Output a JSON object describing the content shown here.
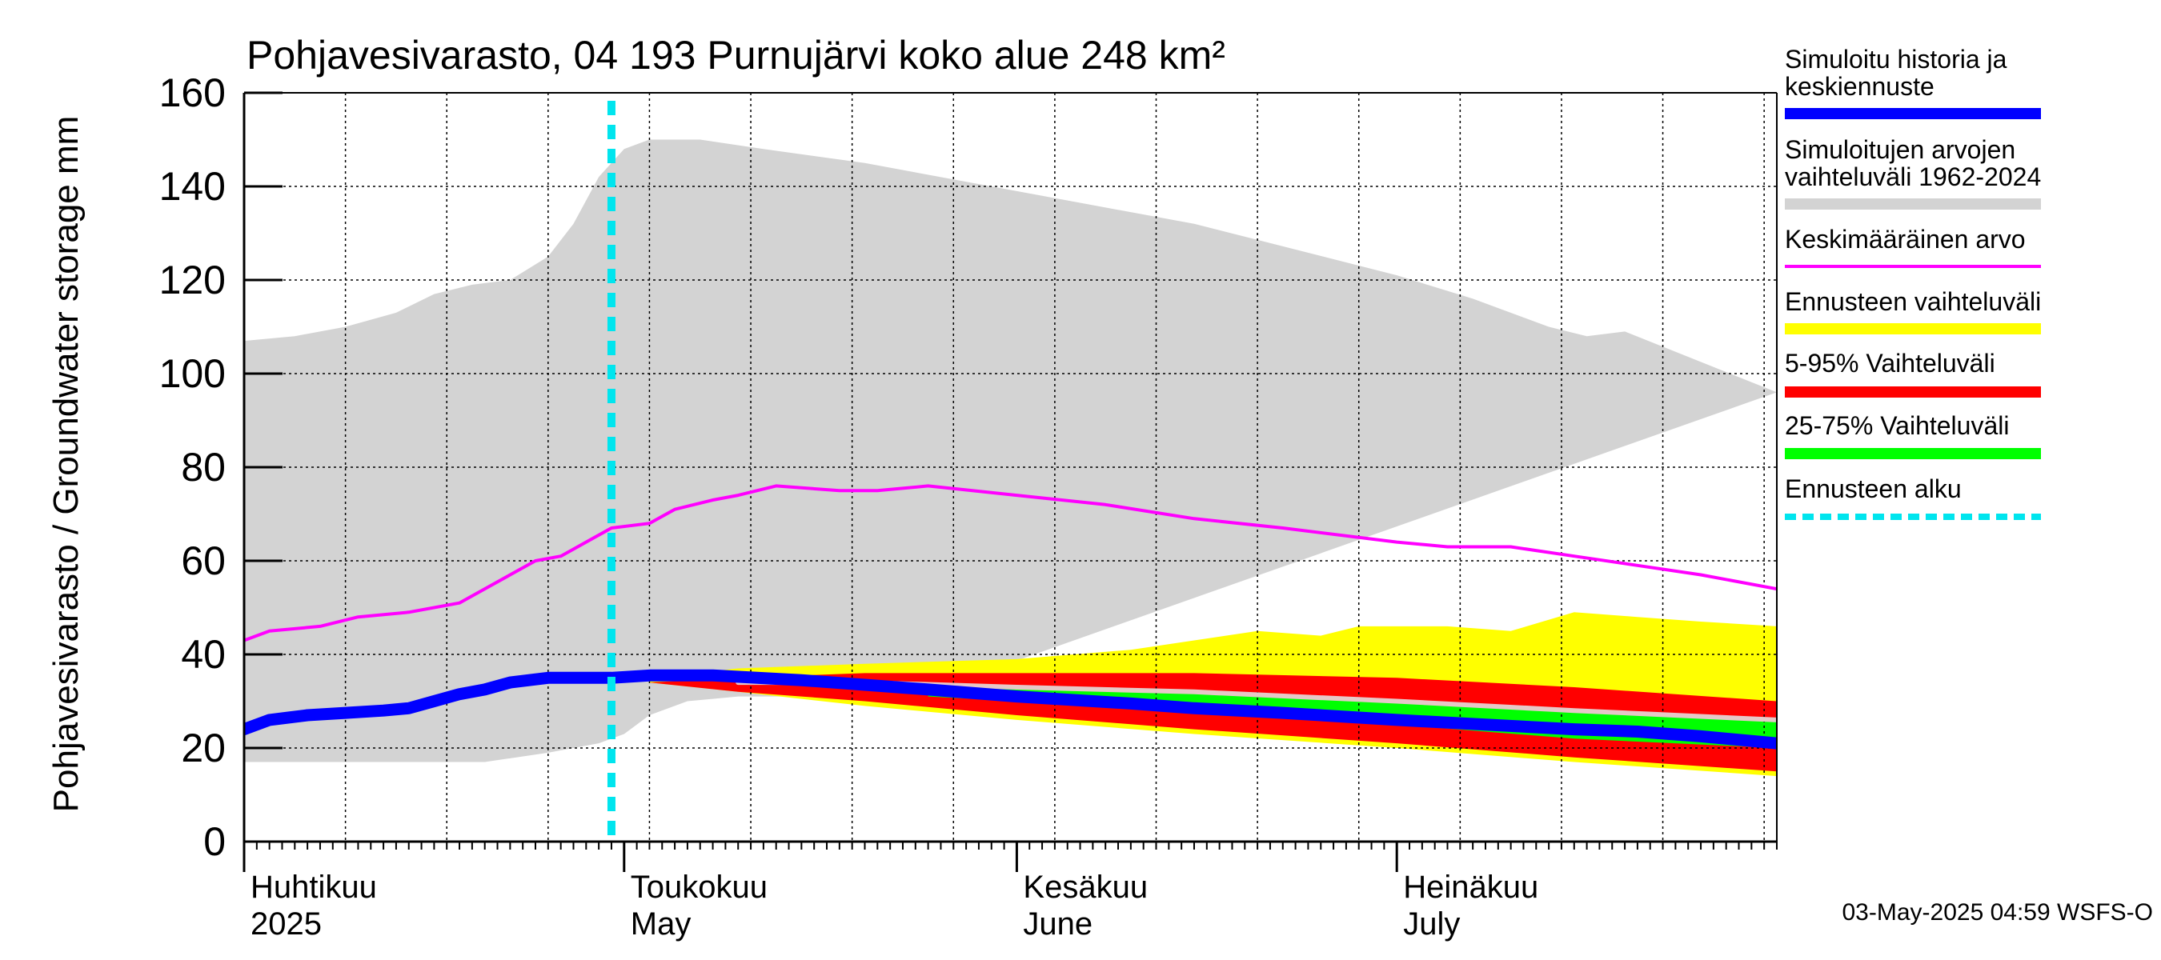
{
  "chart_data": {
    "type": "area",
    "title": "Pohjavesivarasto, 04 193 Purnujärvi koko alue 248 km²",
    "ylabel": "Pohjavesivarasto / Groundwater storage   mm",
    "ylim": [
      0,
      160
    ],
    "yticks": [
      0,
      20,
      40,
      60,
      80,
      100,
      120,
      140,
      160
    ],
    "xlim": [
      "2025-04-01",
      "2025-07-31"
    ],
    "grid": true,
    "month_labels": [
      {
        "line1": "Huhtikuu",
        "line2": "2025",
        "date": "2025-04-01"
      },
      {
        "line1": "Toukokuu",
        "line2": "May",
        "date": "2025-05-01"
      },
      {
        "line1": "Kesäkuu",
        "line2": "June",
        "date": "2025-06-01"
      },
      {
        "line1": "Heinäkuu",
        "line2": "July",
        "date": "2025-07-01"
      }
    ],
    "forecast_start": "2025-04-30",
    "legend": [
      {
        "label": "Simuloitu historia ja\nkeskiennuste",
        "color": "#0000ff"
      },
      {
        "label": "Simuloitujen arvojen\nvaihteluväli 1962-2024",
        "color": "#d3d3d3"
      },
      {
        "label": "Keskimääräinen arvo",
        "color": "#ff00ff"
      },
      {
        "label": "Ennusteen vaihteluväli",
        "color": "#ffff00"
      },
      {
        "label": "5-95% Vaihteluväli",
        "color": "#ff0000"
      },
      {
        "label": "25-75% Vaihteluväli",
        "color": "#00ff00"
      },
      {
        "label": "Ennusteen alku",
        "color": "#00e5ee"
      }
    ],
    "series": [
      {
        "name": "Simuloitujen arvojen vaihteluväli 1962-2024",
        "type": "band",
        "color": "#d3d3d3",
        "upper": [
          [
            "2025-04-01",
            107
          ],
          [
            "2025-04-05",
            108
          ],
          [
            "2025-04-09",
            110
          ],
          [
            "2025-04-13",
            113
          ],
          [
            "2025-04-16",
            117
          ],
          [
            "2025-04-19",
            119
          ],
          [
            "2025-04-22",
            120
          ],
          [
            "2025-04-25",
            125
          ],
          [
            "2025-04-27",
            132
          ],
          [
            "2025-04-29",
            142
          ],
          [
            "2025-05-01",
            148
          ],
          [
            "2025-05-03",
            150
          ],
          [
            "2025-05-07",
            150
          ],
          [
            "2025-05-12",
            148
          ],
          [
            "2025-05-20",
            145
          ],
          [
            "2025-06-01",
            139
          ],
          [
            "2025-06-15",
            132
          ],
          [
            "2025-07-01",
            121
          ],
          [
            "2025-07-07",
            116
          ],
          [
            "2025-07-13",
            110
          ],
          [
            "2025-07-16",
            108
          ],
          [
            "2025-07-19",
            109
          ],
          [
            "2025-07-31",
            96
          ]
        ],
        "lower": [
          [
            "2025-04-01",
            17
          ],
          [
            "2025-04-10",
            17
          ],
          [
            "2025-04-20",
            17
          ],
          [
            "2025-04-25",
            19
          ],
          [
            "2025-04-29",
            21
          ],
          [
            "2025-05-01",
            23
          ],
          [
            "2025-05-03",
            27
          ],
          [
            "2025-05-06",
            30
          ],
          [
            "2025-05-10",
            31
          ],
          [
            "2025-05-15",
            31
          ],
          [
            "2025-05-20",
            32
          ],
          [
            "2025-05-25",
            32
          ]
        ]
      },
      {
        "name": "Ennusteen vaihteluväli",
        "type": "band",
        "color": "#ffff00",
        "upper": [
          [
            "2025-05-03",
            35
          ],
          [
            "2025-05-10",
            37
          ],
          [
            "2025-05-20",
            38
          ],
          [
            "2025-06-01",
            39
          ],
          [
            "2025-06-10",
            41
          ],
          [
            "2025-06-15",
            43
          ],
          [
            "2025-06-20",
            45
          ],
          [
            "2025-06-25",
            44
          ],
          [
            "2025-06-28",
            46
          ],
          [
            "2025-07-05",
            46
          ],
          [
            "2025-07-10",
            45
          ],
          [
            "2025-07-15",
            49
          ],
          [
            "2025-07-20",
            48
          ],
          [
            "2025-07-25",
            47
          ],
          [
            "2025-07-31",
            46
          ]
        ],
        "lower": [
          [
            "2025-05-03",
            34
          ],
          [
            "2025-05-10",
            32
          ],
          [
            "2025-05-20",
            29
          ],
          [
            "2025-06-01",
            26
          ],
          [
            "2025-06-15",
            23
          ],
          [
            "2025-07-01",
            20
          ],
          [
            "2025-07-15",
            17
          ],
          [
            "2025-07-31",
            14
          ]
        ]
      },
      {
        "name": "5-95% Vaihteluväli",
        "type": "band",
        "color": "#ff0000",
        "upper": [
          [
            "2025-05-03",
            34
          ],
          [
            "2025-05-10",
            35
          ],
          [
            "2025-05-20",
            36
          ],
          [
            "2025-06-01",
            36
          ],
          [
            "2025-06-15",
            36
          ],
          [
            "2025-07-01",
            35
          ],
          [
            "2025-07-15",
            33
          ],
          [
            "2025-07-31",
            30
          ]
        ],
        "lower": [
          [
            "2025-05-03",
            34
          ],
          [
            "2025-05-10",
            32
          ],
          [
            "2025-05-20",
            30
          ],
          [
            "2025-06-01",
            27
          ],
          [
            "2025-06-15",
            24
          ],
          [
            "2025-07-01",
            21
          ],
          [
            "2025-07-15",
            18
          ],
          [
            "2025-07-31",
            15
          ]
        ]
      },
      {
        "name": "25-75% Vaihteluväli",
        "type": "band",
        "color": "#00ff00",
        "upper": [
          [
            "2025-05-25",
            32
          ],
          [
            "2025-06-01",
            33
          ],
          [
            "2025-06-15",
            32
          ],
          [
            "2025-07-01",
            30
          ],
          [
            "2025-07-15",
            28
          ],
          [
            "2025-07-31",
            26
          ]
        ],
        "lower": [
          [
            "2025-05-25",
            31
          ],
          [
            "2025-06-01",
            30
          ],
          [
            "2025-06-15",
            28
          ],
          [
            "2025-07-01",
            25
          ],
          [
            "2025-07-15",
            22
          ],
          [
            "2025-07-31",
            20
          ]
        ]
      },
      {
        "name": "Keskimääräinen arvo",
        "type": "line",
        "color": "#ff00ff",
        "values": [
          [
            "2025-04-01",
            43
          ],
          [
            "2025-04-03",
            45
          ],
          [
            "2025-04-07",
            46
          ],
          [
            "2025-04-10",
            48
          ],
          [
            "2025-04-14",
            49
          ],
          [
            "2025-04-18",
            51
          ],
          [
            "2025-04-20",
            54
          ],
          [
            "2025-04-22",
            57
          ],
          [
            "2025-04-24",
            60
          ],
          [
            "2025-04-26",
            61
          ],
          [
            "2025-04-28",
            64
          ],
          [
            "2025-04-30",
            67
          ],
          [
            "2025-05-03",
            68
          ],
          [
            "2025-05-05",
            71
          ],
          [
            "2025-05-08",
            73
          ],
          [
            "2025-05-10",
            74
          ],
          [
            "2025-05-13",
            76
          ],
          [
            "2025-05-18",
            75
          ],
          [
            "2025-05-21",
            75
          ],
          [
            "2025-05-25",
            76
          ],
          [
            "2025-06-01",
            74
          ],
          [
            "2025-06-08",
            72
          ],
          [
            "2025-06-15",
            69
          ],
          [
            "2025-06-22",
            67
          ],
          [
            "2025-07-01",
            64
          ],
          [
            "2025-07-05",
            63
          ],
          [
            "2025-07-10",
            63
          ],
          [
            "2025-07-15",
            61
          ],
          [
            "2025-07-20",
            59
          ],
          [
            "2025-07-25",
            57
          ],
          [
            "2025-07-31",
            54
          ]
        ]
      },
      {
        "name": "Keskiennuste (forecast median, light)",
        "type": "line",
        "color": "#e6c8c8",
        "values": [
          [
            "2025-05-10",
            34
          ],
          [
            "2025-05-20",
            34
          ],
          [
            "2025-06-01",
            33
          ],
          [
            "2025-06-15",
            32
          ],
          [
            "2025-07-01",
            30
          ],
          [
            "2025-07-15",
            28
          ],
          [
            "2025-07-31",
            26
          ]
        ]
      },
      {
        "name": "Simuloitu historia ja keskiennuste",
        "type": "line",
        "color": "#0000ff",
        "values": [
          [
            "2025-04-01",
            24
          ],
          [
            "2025-04-03",
            26
          ],
          [
            "2025-04-06",
            27
          ],
          [
            "2025-04-09",
            27.5
          ],
          [
            "2025-04-12",
            28
          ],
          [
            "2025-04-14",
            28.5
          ],
          [
            "2025-04-16",
            30
          ],
          [
            "2025-04-18",
            31.5
          ],
          [
            "2025-04-20",
            32.5
          ],
          [
            "2025-04-22",
            34
          ],
          [
            "2025-04-25",
            35
          ],
          [
            "2025-04-30",
            35
          ],
          [
            "2025-05-03",
            35.5
          ],
          [
            "2025-05-08",
            35.5
          ],
          [
            "2025-05-15",
            34.5
          ],
          [
            "2025-05-20",
            33.5
          ],
          [
            "2025-05-25",
            32.5
          ],
          [
            "2025-06-01",
            31
          ],
          [
            "2025-06-10",
            29.5
          ],
          [
            "2025-06-15",
            28.5
          ],
          [
            "2025-06-22",
            27.5
          ],
          [
            "2025-07-01",
            26
          ],
          [
            "2025-07-08",
            25
          ],
          [
            "2025-07-15",
            24
          ],
          [
            "2025-07-20",
            23.5
          ],
          [
            "2025-07-25",
            22.5
          ],
          [
            "2025-07-31",
            21
          ]
        ]
      }
    ]
  },
  "footer": "03-May-2025 04:59 WSFS-O"
}
